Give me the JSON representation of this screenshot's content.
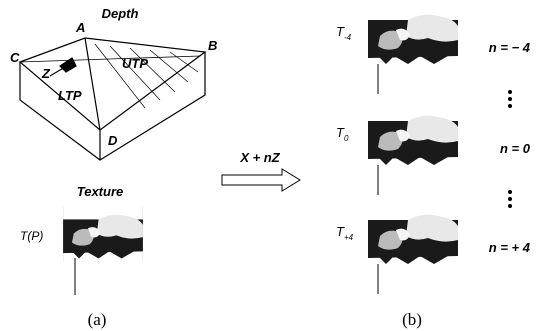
{
  "panel_a": {
    "depth_title": "Depth",
    "points": [
      "A",
      "B",
      "C",
      "D"
    ],
    "z_label": "Z",
    "upper_label": "UTP",
    "lower_label": "LTP",
    "texture_title": "Texture",
    "texture_label": "T(P)",
    "caption": "(a)"
  },
  "arrow_label": "X + nZ",
  "panel_b": {
    "frames": [
      {
        "symbol": "T",
        "subscript": "-4",
        "n_label": "n = − 4"
      },
      {
        "symbol": "T",
        "subscript": "0",
        "n_label": "n = 0"
      },
      {
        "symbol": "T",
        "subscript": "+4",
        "n_label": "n = + 4"
      }
    ],
    "caption": "(b)"
  }
}
